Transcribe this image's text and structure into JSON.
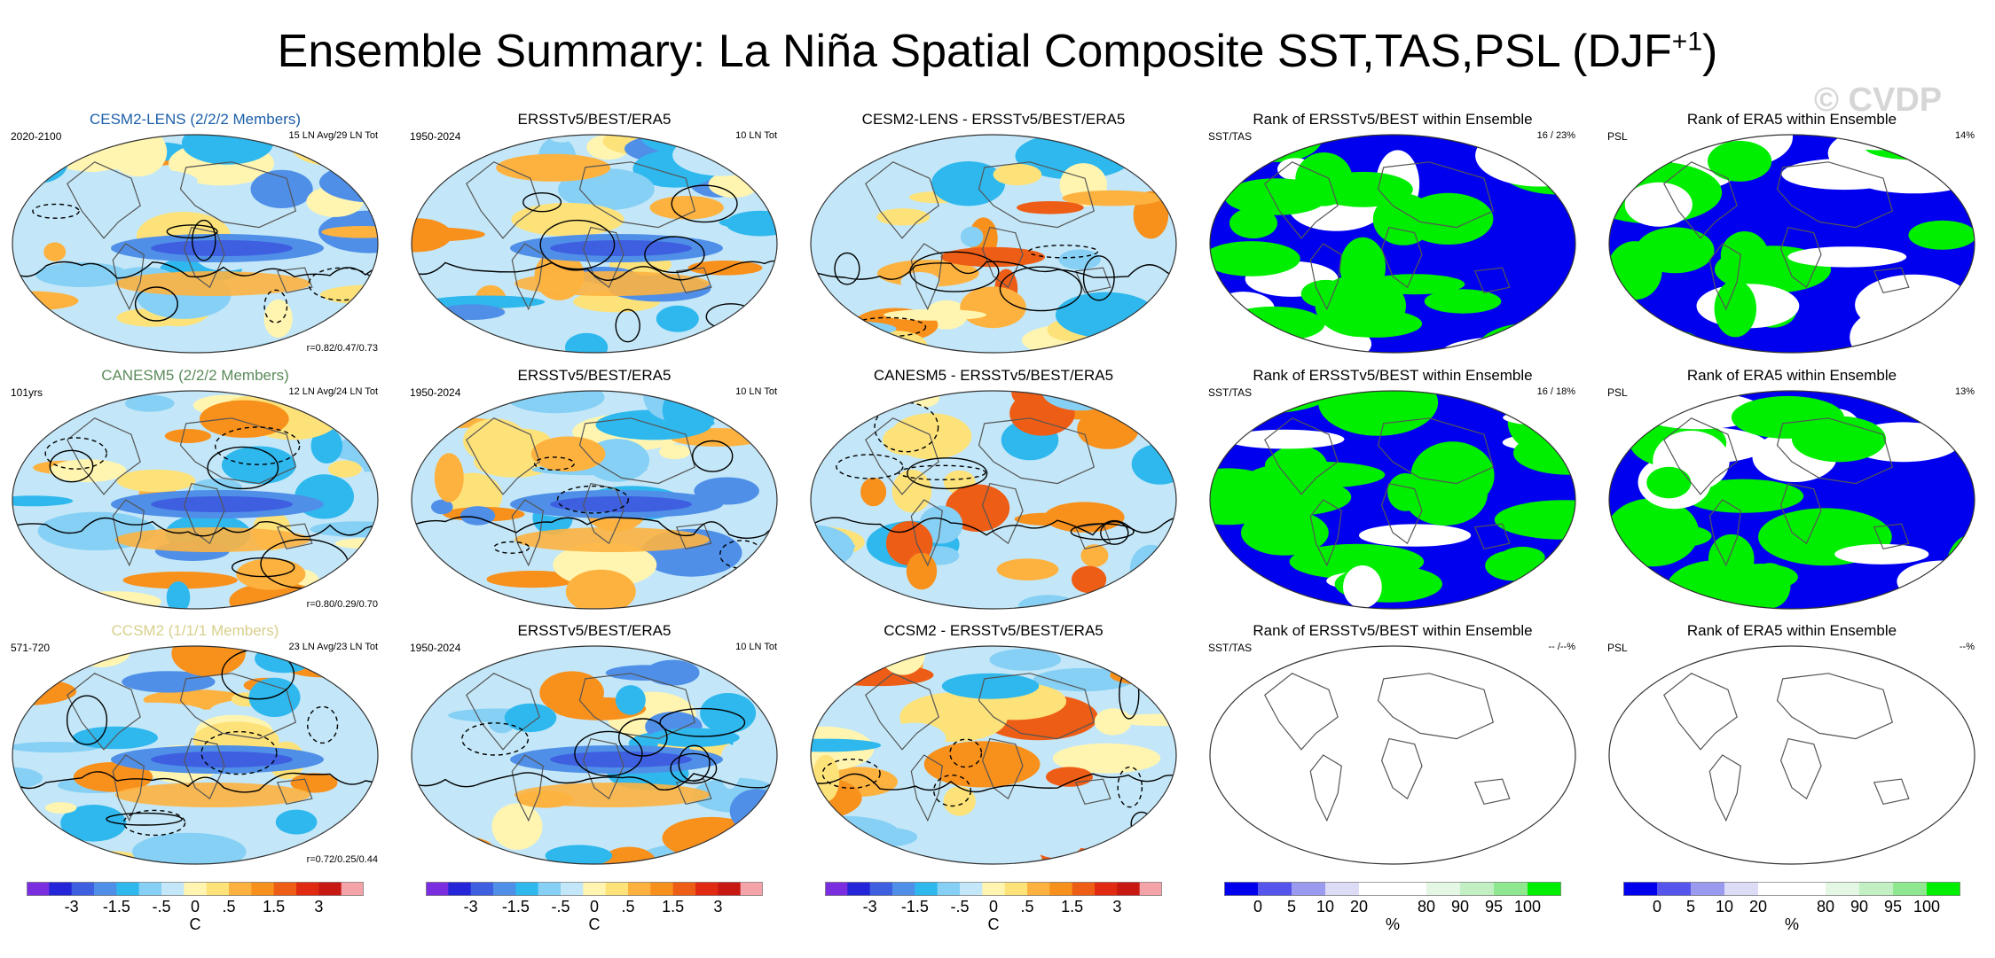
{
  "title": {
    "main": "Ensemble Summary: La Niña Spatial Composite SST,TAS,PSL (DJF",
    "sup": "+1",
    "close": ")"
  },
  "watermark": "© CVDP",
  "colors": {
    "temp_scale": [
      "#7a2ee0",
      "#2424d8",
      "#3e5fe0",
      "#4f8fe8",
      "#2fb8ee",
      "#86d0f5",
      "#c3e7f8",
      "#fff5b0",
      "#fde27a",
      "#fdb240",
      "#f8901c",
      "#ee5d16",
      "#e02b12",
      "#c81812",
      "#f4a3a8"
    ],
    "rank_scale": [
      "#0000ee",
      "#5555ee",
      "#9a9aee",
      "#dcdcf6",
      "#ffffff",
      "#ffffff",
      "#e4f6e4",
      "#c2f0c2",
      "#8fe88f",
      "#00ee00"
    ]
  },
  "panels": [
    {
      "title": "CESM2-LENS (2/2/2 Members)",
      "title_color": "#1c5fa8",
      "left": "2020-2100",
      "right": "15 LN Avg/29 LN Tot",
      "corr": "r=0.82/0.47/0.73",
      "kind": "model"
    },
    {
      "title": "ERSSTv5/BEST/ERA5",
      "title_color": "#000000",
      "left": "1950-2024",
      "right": "10 LN Tot",
      "corr": "",
      "kind": "obs"
    },
    {
      "title": "CESM2-LENS - ERSSTv5/BEST/ERA5",
      "title_color": "#000000",
      "left": "",
      "right": "",
      "corr": "",
      "kind": "diff"
    },
    {
      "title": "Rank of ERSSTv5/BEST within Ensemble",
      "title_color": "#000000",
      "left": "SST/TAS",
      "right": "16 /  23%",
      "corr": "",
      "kind": "rank"
    },
    {
      "title": "Rank of ERA5 within Ensemble",
      "title_color": "#000000",
      "left": "PSL",
      "right": "14%",
      "corr": "",
      "kind": "rank"
    },
    {
      "title": "CANESM5 (2/2/2 Members)",
      "title_color": "#5a8a5a",
      "left": "101yrs",
      "right": "12 LN Avg/24 LN Tot",
      "corr": "r=0.80/0.29/0.70",
      "kind": "model"
    },
    {
      "title": "ERSSTv5/BEST/ERA5",
      "title_color": "#000000",
      "left": "1950-2024",
      "right": "10 LN Tot",
      "corr": "",
      "kind": "obs"
    },
    {
      "title": "CANESM5 - ERSSTv5/BEST/ERA5",
      "title_color": "#000000",
      "left": "",
      "right": "",
      "corr": "",
      "kind": "diff"
    },
    {
      "title": "Rank of ERSSTv5/BEST within Ensemble",
      "title_color": "#000000",
      "left": "SST/TAS",
      "right": "16 /  18%",
      "corr": "",
      "kind": "rank"
    },
    {
      "title": "Rank of ERA5 within Ensemble",
      "title_color": "#000000",
      "left": "PSL",
      "right": "13%",
      "corr": "",
      "kind": "rank"
    },
    {
      "title": "CCSM2 (1/1/1 Members)",
      "title_color": "#d8cf8c",
      "left": "571-720",
      "right": "23 LN Avg/23 LN Tot",
      "corr": "r=0.72/0.25/0.44",
      "kind": "model"
    },
    {
      "title": "ERSSTv5/BEST/ERA5",
      "title_color": "#000000",
      "left": "1950-2024",
      "right": "10 LN Tot",
      "corr": "",
      "kind": "obs"
    },
    {
      "title": "CCSM2 - ERSSTv5/BEST/ERA5",
      "title_color": "#000000",
      "left": "",
      "right": "",
      "corr": "",
      "kind": "diff"
    },
    {
      "title": "Rank of ERSSTv5/BEST within Ensemble",
      "title_color": "#000000",
      "left": "SST/TAS",
      "right": "-- /--%",
      "corr": "",
      "kind": "empty"
    },
    {
      "title": "Rank of ERA5 within Ensemble",
      "title_color": "#000000",
      "left": "PSL",
      "right": "--%",
      "corr": "",
      "kind": "empty"
    }
  ],
  "colorbars": [
    {
      "kind": "temp",
      "ticks": [
        "-3",
        "-1.5",
        "-.5",
        "0",
        ".5",
        "1.5",
        "3"
      ],
      "unit": "C"
    },
    {
      "kind": "temp",
      "ticks": [
        "-3",
        "-1.5",
        "-.5",
        "0",
        ".5",
        "1.5",
        "3"
      ],
      "unit": "C"
    },
    {
      "kind": "temp",
      "ticks": [
        "-3",
        "-1.5",
        "-.5",
        "0",
        ".5",
        "1.5",
        "3"
      ],
      "unit": "C"
    },
    {
      "kind": "rank",
      "ticks": [
        "0",
        "5",
        "10",
        "20",
        "80",
        "90",
        "95",
        "100"
      ],
      "unit": "%"
    },
    {
      "kind": "rank",
      "ticks": [
        "0",
        "5",
        "10",
        "20",
        "80",
        "90",
        "95",
        "100"
      ],
      "unit": "%"
    }
  ],
  "chart_data": {
    "type": "heatmap",
    "title": "Ensemble Summary: La Niña Spatial Composite SST,TAS,PSL (DJF+1)",
    "layout": "3 rows x 5 columns of global map panels",
    "temperature_colorbar": {
      "unit": "C",
      "tick_labels": [
        -3,
        -1.5,
        -0.5,
        0,
        0.5,
        1.5,
        3
      ]
    },
    "rank_colorbar": {
      "unit": "%",
      "tick_labels": [
        0,
        5,
        10,
        20,
        80,
        90,
        95,
        100
      ]
    },
    "rows": [
      {
        "model": "CESM2-LENS",
        "members": "2/2/2",
        "period": "2020-2100",
        "events": "15 LN Avg/29 LN Tot",
        "pattern_corr": [
          0.82,
          0.47,
          0.73
        ],
        "obs_period": "1950-2024",
        "obs_events": "10 LN Tot",
        "sst_tas_rank": "16 / 23%",
        "psl_rank": "14%"
      },
      {
        "model": "CANESM5",
        "members": "2/2/2",
        "period": "101yrs",
        "events": "12 LN Avg/24 LN Tot",
        "pattern_corr": [
          0.8,
          0.29,
          0.7
        ],
        "obs_period": "1950-2024",
        "obs_events": "10 LN Tot",
        "sst_tas_rank": "16 / 18%",
        "psl_rank": "13%"
      },
      {
        "model": "CCSM2",
        "members": "1/1/1",
        "period": "571-720",
        "events": "23 LN Avg/23 LN Tot",
        "pattern_corr": [
          0.72,
          0.25,
          0.44
        ],
        "obs_period": "1950-2024",
        "obs_events": "10 LN Tot",
        "sst_tas_rank": "-- /--%",
        "psl_rank": "--%"
      }
    ]
  }
}
